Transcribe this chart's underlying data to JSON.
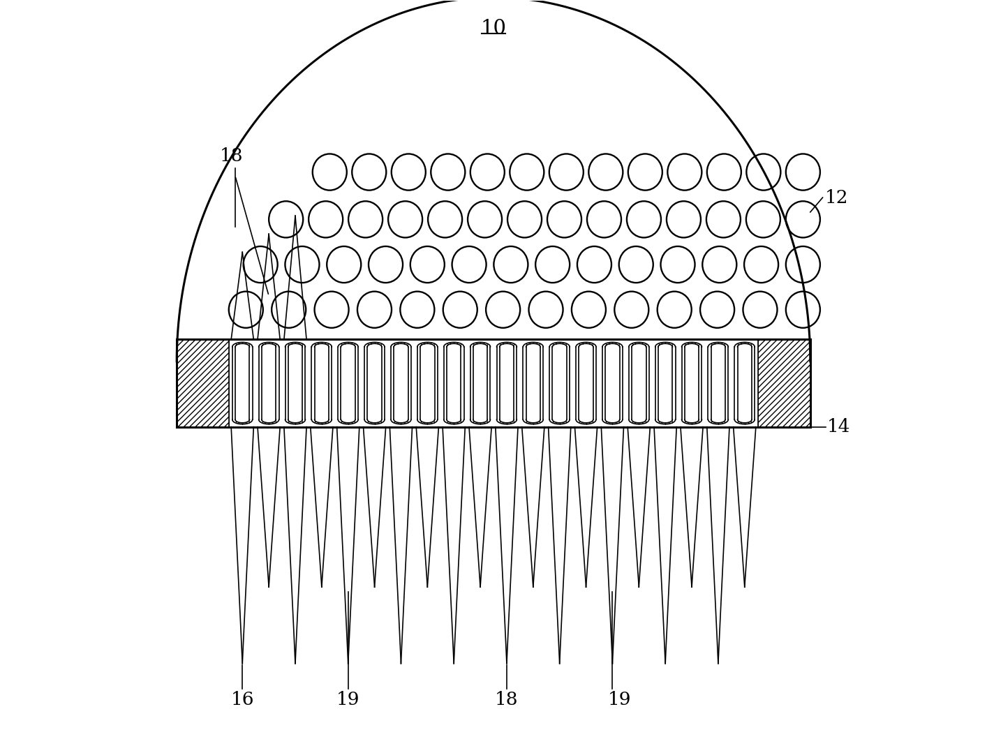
{
  "bg_color": "#ffffff",
  "line_color": "#000000",
  "fig_width": 14.14,
  "fig_height": 10.46,
  "dpi": 100
}
